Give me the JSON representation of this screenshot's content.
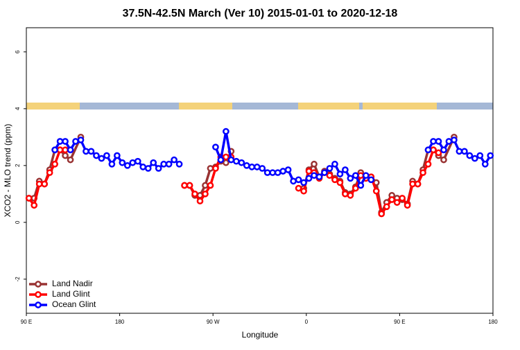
{
  "chart_data": {
    "type": "line",
    "title": "37.5N-42.5N March (Ver 10)   2015-01-01 to 2020-12-18",
    "x_label": "Longitude",
    "y_label": "XCO2 - MLO trend (ppm)",
    "xlim": [
      90,
      540
    ],
    "ylim": [
      -3.2,
      6.85
    ],
    "xticks": [
      {
        "value": 90,
        "label": "90 E"
      },
      {
        "value": 180,
        "label": "180"
      },
      {
        "value": 270,
        "label": "90 W"
      },
      {
        "value": 360,
        "label": "0"
      },
      {
        "value": 450,
        "label": "90 E"
      },
      {
        "value": 540,
        "label": "180"
      }
    ],
    "yticks": [
      -2,
      0,
      2,
      4,
      6
    ],
    "legend": "bottom-left",
    "series": [
      {
        "name": "Land Nadir",
        "color": "#993333",
        "x": [
          92.5,
          97.5,
          102.5,
          107.5,
          112.5,
          117.5,
          122.5,
          127.5,
          132.5,
          142.5,
          190,
          242.5,
          247.5,
          252.5,
          257.5,
          262.5,
          267.5,
          272.5,
          277.5,
          282.5,
          287.5,
          320,
          357.5,
          362.5,
          367.5,
          372.5,
          377.5,
          382.5,
          387.5,
          392.5,
          397.5,
          402.5,
          407.5,
          412.5,
          422.5,
          427.5,
          432.5,
          437.5,
          442.5,
          447.5,
          452.5,
          457.5,
          462.5,
          467.5,
          472.5,
          477.5,
          482.5,
          487.5,
          492.5,
          502.5
        ],
        "values": [
          0.85,
          0.85,
          1.45,
          1.35,
          1.85,
          2.55,
          2.55,
          2.35,
          2.2,
          3.0,
          null,
          1.3,
          1.3,
          0.95,
          0.95,
          1.3,
          1.9,
          1.95,
          2.15,
          2.1,
          2.5,
          null,
          1.2,
          1.85,
          2.05,
          1.6,
          1.8,
          1.7,
          1.55,
          1.45,
          1.05,
          1.0,
          1.25,
          1.75,
          1.6,
          1.4,
          0.35,
          0.7,
          0.95,
          0.85,
          0.8,
          0.65,
          1.45,
          1.35,
          1.85,
          2.55,
          2.55,
          2.35,
          2.2,
          3.0
        ]
      },
      {
        "name": "Land Glint",
        "color": "#ff0000",
        "x": [
          92.5,
          97.5,
          102.5,
          107.5,
          112.5,
          117.5,
          122.5,
          127.5,
          190,
          242.5,
          247.5,
          252.5,
          257.5,
          262.5,
          267.5,
          272.5,
          277.5,
          282.5,
          287.5,
          320,
          352.5,
          357.5,
          362.5,
          367.5,
          372.5,
          377.5,
          382.5,
          387.5,
          392.5,
          397.5,
          402.5,
          407.5,
          412.5,
          417.5,
          422.5,
          427.5,
          432.5,
          437.5,
          442.5,
          447.5,
          452.5,
          457.5,
          462.5,
          467.5,
          472.5,
          477.5,
          482.5,
          487.5
        ],
        "values": [
          0.85,
          0.6,
          1.35,
          1.35,
          1.75,
          2.05,
          2.55,
          2.55,
          null,
          1.3,
          1.3,
          1.0,
          0.75,
          1.0,
          1.3,
          1.9,
          2.3,
          2.3,
          2.3,
          null,
          1.2,
          1.1,
          1.8,
          1.75,
          1.55,
          1.75,
          1.65,
          1.5,
          1.4,
          1.0,
          0.95,
          1.2,
          1.65,
          1.55,
          1.6,
          1.1,
          0.3,
          0.55,
          0.8,
          0.7,
          0.85,
          0.6,
          1.35,
          1.35,
          1.75,
          2.05,
          2.55,
          2.45
        ]
      },
      {
        "name": "Ocean Glint",
        "color": "#0000ff",
        "x": [
          117.5,
          122.5,
          127.5,
          132.5,
          137.5,
          142.5,
          147.5,
          152.5,
          157.5,
          162.5,
          167.5,
          172.5,
          177.5,
          182.5,
          187.5,
          192.5,
          197.5,
          202.5,
          207.5,
          212.5,
          217.5,
          222.5,
          227.5,
          232.5,
          237.5,
          255,
          272.5,
          277.5,
          282.5,
          287.5,
          292.5,
          297.5,
          302.5,
          307.5,
          312.5,
          317.5,
          322.5,
          327.5,
          332.5,
          337.5,
          342.5,
          347.5,
          352.5,
          357.5,
          362.5,
          367.5,
          372.5,
          377.5,
          382.5,
          387.5,
          392.5,
          397.5,
          402.5,
          407.5,
          412.5,
          417.5,
          422.5,
          450,
          477.5,
          482.5,
          487.5,
          492.5,
          497.5,
          502.5,
          507.5,
          512.5,
          517.5,
          522.5,
          527.5,
          532.5,
          537.5
        ],
        "values": [
          2.55,
          2.85,
          2.85,
          2.55,
          2.85,
          2.9,
          2.5,
          2.5,
          2.35,
          2.25,
          2.35,
          2.05,
          2.35,
          2.1,
          2.0,
          2.1,
          2.15,
          1.95,
          1.9,
          2.1,
          1.9,
          2.05,
          2.05,
          2.2,
          2.05,
          null,
          2.65,
          2.2,
          3.2,
          2.2,
          2.15,
          2.1,
          2.0,
          1.95,
          1.95,
          1.9,
          1.75,
          1.75,
          1.75,
          1.8,
          1.85,
          1.45,
          1.5,
          1.4,
          1.55,
          1.65,
          1.6,
          1.75,
          1.9,
          2.05,
          1.7,
          1.85,
          1.55,
          1.65,
          1.3,
          1.65,
          1.5,
          null,
          2.55,
          2.85,
          2.85,
          2.55,
          2.85,
          2.9,
          2.5,
          2.5,
          2.35,
          2.25,
          2.35,
          2.05,
          2.35
        ]
      }
    ]
  }
}
